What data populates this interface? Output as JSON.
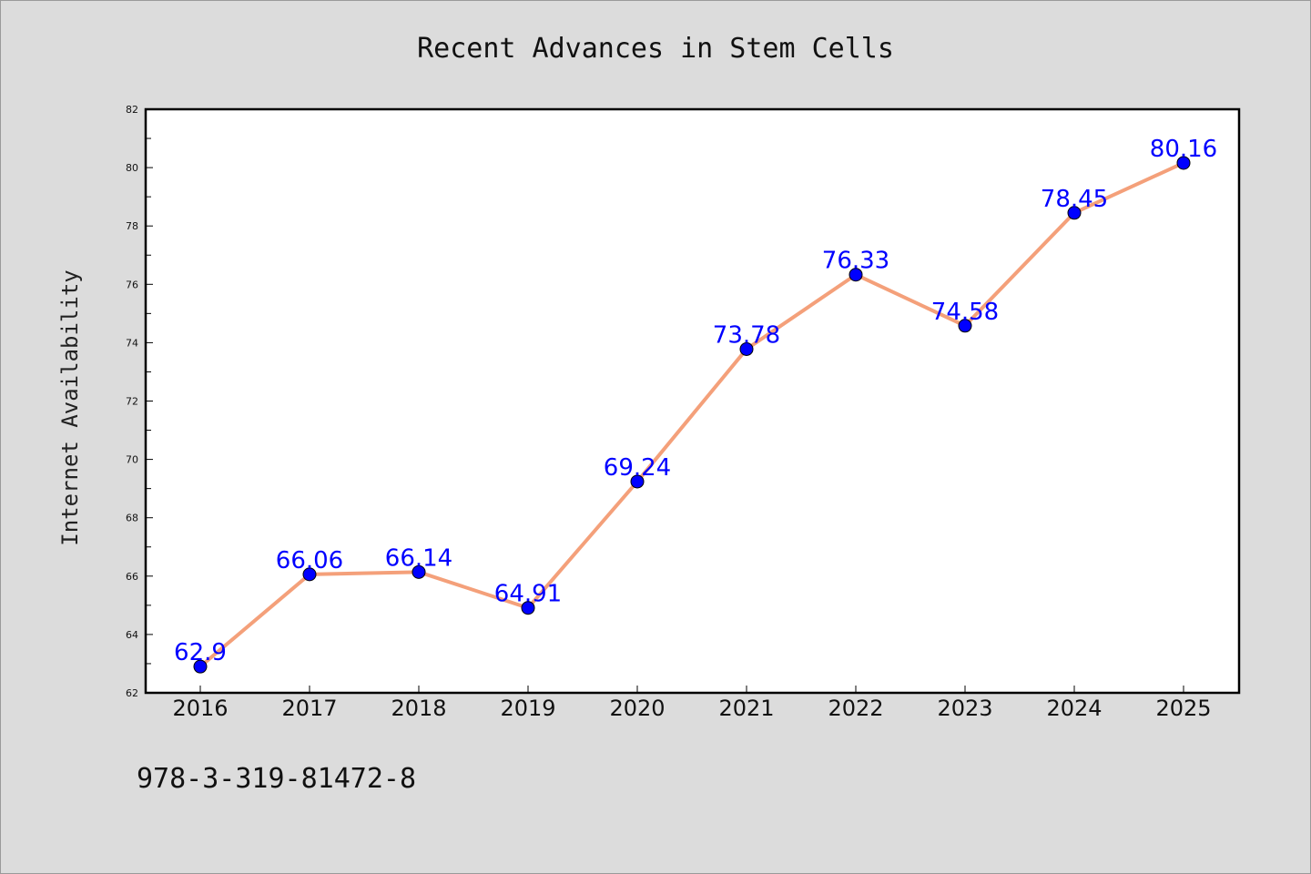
{
  "chart_data": {
    "type": "line",
    "title": "Recent Advances in Stem Cells",
    "xlabel": "",
    "ylabel": "Internet Availability",
    "categories": [
      "2016",
      "2017",
      "2018",
      "2019",
      "2020",
      "2021",
      "2022",
      "2023",
      "2024",
      "2025"
    ],
    "series": [
      {
        "values": [
          62.9,
          66.06,
          66.14,
          64.91,
          69.24,
          73.78,
          76.33,
          74.58,
          78.45,
          80.16
        ],
        "labels": [
          "62.9",
          "66.06",
          "66.14",
          "64.91",
          "69.24",
          "73.78",
          "76.33",
          "74.58",
          "78.45",
          "80.16"
        ],
        "line_color": "#f4a07a",
        "marker_color": "#0000ff"
      }
    ],
    "ylim": [
      62,
      82
    ],
    "yticks": [
      "62",
      "64",
      "66",
      "68",
      "70",
      "72",
      "74",
      "76",
      "78",
      "80",
      "82"
    ],
    "grid": false,
    "legend": "none"
  },
  "footer_text": "978-3-319-81472-8"
}
